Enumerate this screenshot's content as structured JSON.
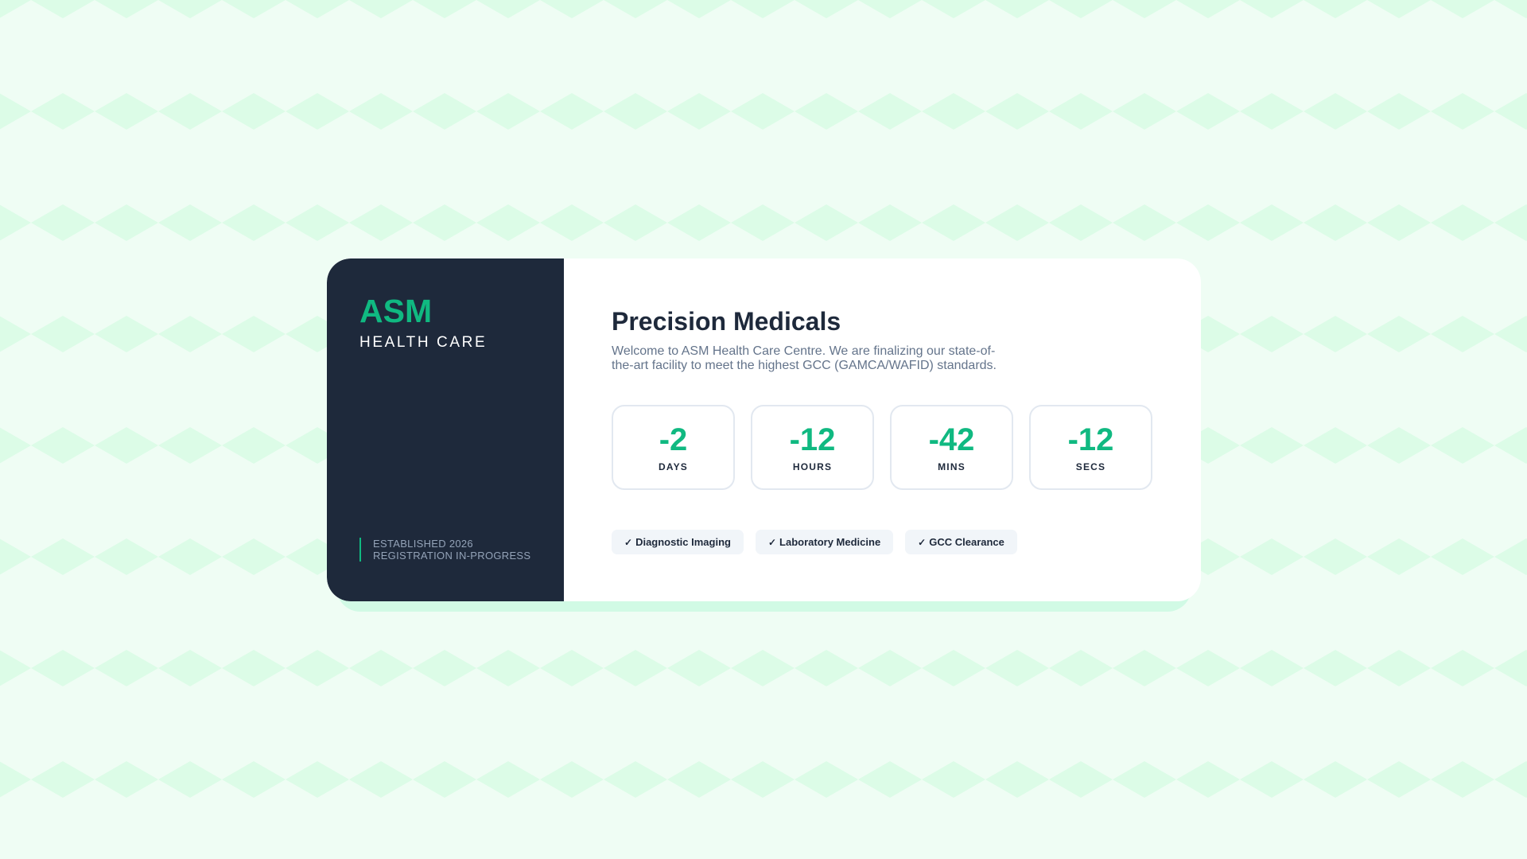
{
  "colors": {
    "accent": "#10b981",
    "dark": "#1e293b",
    "background": "#effdf4",
    "pattern": "#dcfce7"
  },
  "sidebar": {
    "brand": "ASM",
    "subtitle": "HEALTH CARE",
    "established": "ESTABLISHED 2026",
    "status": "REGISTRATION IN-PROGRESS"
  },
  "main": {
    "title": "Precision Medicals",
    "description": "Welcome to ASM Health Care Centre. We are finalizing our state-of-the-art facility to meet the highest GCC (GAMCA/WAFID) standards.",
    "countdown": [
      {
        "value": "-2",
        "label": "DAYS"
      },
      {
        "value": "-12",
        "label": "HOURS"
      },
      {
        "value": "-42",
        "label": "MINS"
      },
      {
        "value": "-12",
        "label": "SECS"
      }
    ],
    "tags": [
      {
        "icon": "check-icon",
        "label": "Diagnostic Imaging"
      },
      {
        "icon": "check-icon",
        "label": "Laboratory Medicine"
      },
      {
        "icon": "check-icon",
        "label": "GCC Clearance"
      }
    ]
  }
}
